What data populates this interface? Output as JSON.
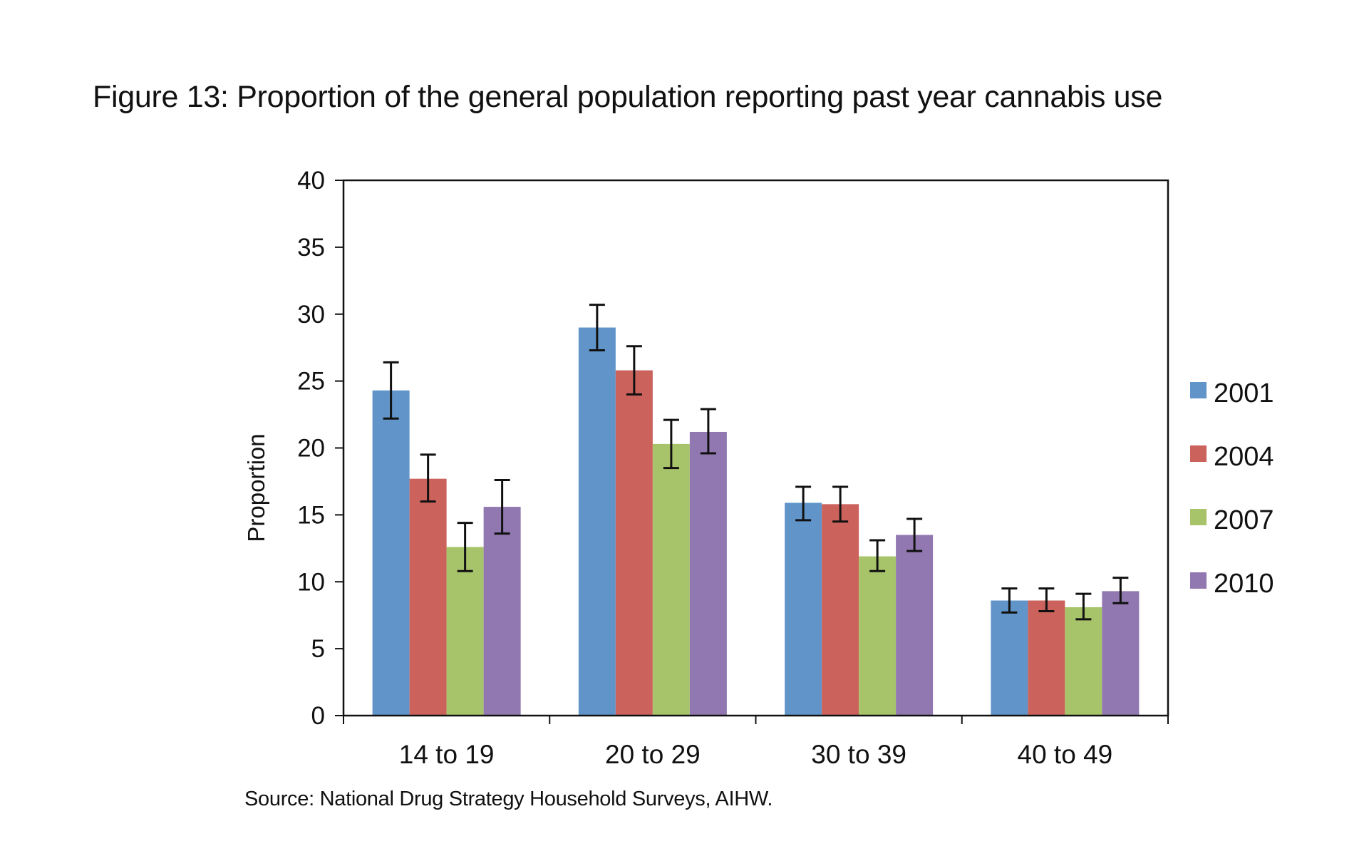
{
  "title": "Figure 13: Proportion of the general population reporting past year cannabis use",
  "source": "Source: National Drug Strategy Household Surveys, AIHW.",
  "chart_data": {
    "type": "bar",
    "title": "Figure 13: Proportion of the general population reporting past year cannabis use",
    "xlabel": "",
    "ylabel": "Proportion",
    "ylim": [
      0,
      40
    ],
    "yticks": [
      0,
      5,
      10,
      15,
      20,
      25,
      30,
      35,
      40
    ],
    "categories": [
      "14 to 19",
      "20 to 29",
      "30 to 39",
      "40 to 49"
    ],
    "series": [
      {
        "name": "2001",
        "color": "#6195c9",
        "values": [
          24.3,
          29.0,
          15.9,
          8.6
        ],
        "error_low": [
          22.2,
          27.3,
          14.6,
          7.7
        ],
        "error_high": [
          26.4,
          30.7,
          17.1,
          9.5
        ]
      },
      {
        "name": "2004",
        "color": "#cb625c",
        "values": [
          17.7,
          25.8,
          15.8,
          8.6
        ],
        "error_low": [
          16.0,
          24.0,
          14.5,
          7.8
        ],
        "error_high": [
          19.5,
          27.6,
          17.1,
          9.5
        ]
      },
      {
        "name": "2007",
        "color": "#a8c46a",
        "values": [
          12.6,
          20.3,
          11.9,
          8.1
        ],
        "error_low": [
          10.8,
          18.5,
          10.8,
          7.2
        ],
        "error_high": [
          14.4,
          22.1,
          13.1,
          9.1
        ]
      },
      {
        "name": "2010",
        "color": "#9178b0",
        "values": [
          15.6,
          21.2,
          13.5,
          9.3
        ],
        "error_low": [
          13.6,
          19.6,
          12.3,
          8.4
        ],
        "error_high": [
          17.6,
          22.9,
          14.7,
          10.3
        ]
      }
    ],
    "grid": false,
    "legend": "right"
  }
}
